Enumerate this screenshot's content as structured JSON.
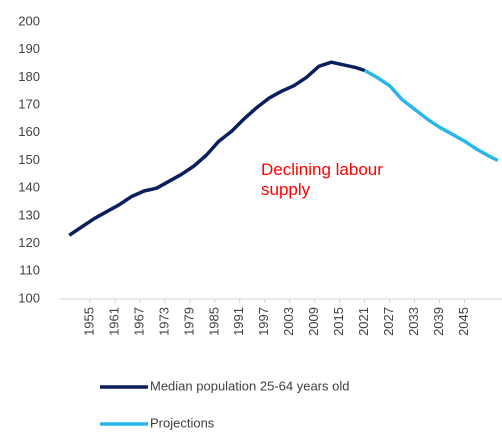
{
  "chart_data": {
    "type": "line",
    "annotation": "Declining labour supply",
    "annotation_color": "#ff0000",
    "x": [
      1950,
      1953,
      1956,
      1959,
      1962,
      1965,
      1968,
      1971,
      1974,
      1977,
      1980,
      1983,
      1986,
      1989,
      1992,
      1995,
      1998,
      2001,
      2004,
      2007,
      2010,
      2013,
      2016,
      2019,
      2021,
      2024,
      2027,
      2030,
      2033,
      2036,
      2039,
      2042,
      2045,
      2048,
      2051,
      2053
    ],
    "series": [
      {
        "name": "Median population 25-64 years old",
        "color": "#0b1f5c",
        "values": [
          123,
          126,
          129,
          131.5,
          134,
          137,
          139,
          140,
          142.5,
          145,
          148,
          152,
          157,
          160.5,
          165,
          169,
          172.5,
          175,
          177,
          180,
          184,
          185.5,
          184.5,
          183.5,
          182.5,
          null,
          null,
          null,
          null,
          null,
          null,
          null,
          null,
          null,
          null,
          null
        ]
      },
      {
        "name": "Projections",
        "color": "#29b6ea",
        "values": [
          null,
          null,
          null,
          null,
          null,
          null,
          null,
          null,
          null,
          null,
          null,
          null,
          null,
          null,
          null,
          null,
          null,
          null,
          null,
          null,
          null,
          null,
          null,
          null,
          182.5,
          180,
          177,
          172,
          168.5,
          165,
          162,
          159.5,
          157,
          154,
          151.5,
          150
        ]
      }
    ],
    "xlim": [
      1949,
      2054
    ],
    "xticks": [
      1955,
      1961,
      1967,
      1973,
      1979,
      1985,
      1991,
      1997,
      2003,
      2009,
      2015,
      2021,
      2027,
      2033,
      2039,
      2045
    ],
    "ylim": [
      100,
      200
    ],
    "yticks": [
      100,
      110,
      120,
      130,
      140,
      150,
      160,
      170,
      180,
      190,
      200
    ],
    "grid": false
  }
}
